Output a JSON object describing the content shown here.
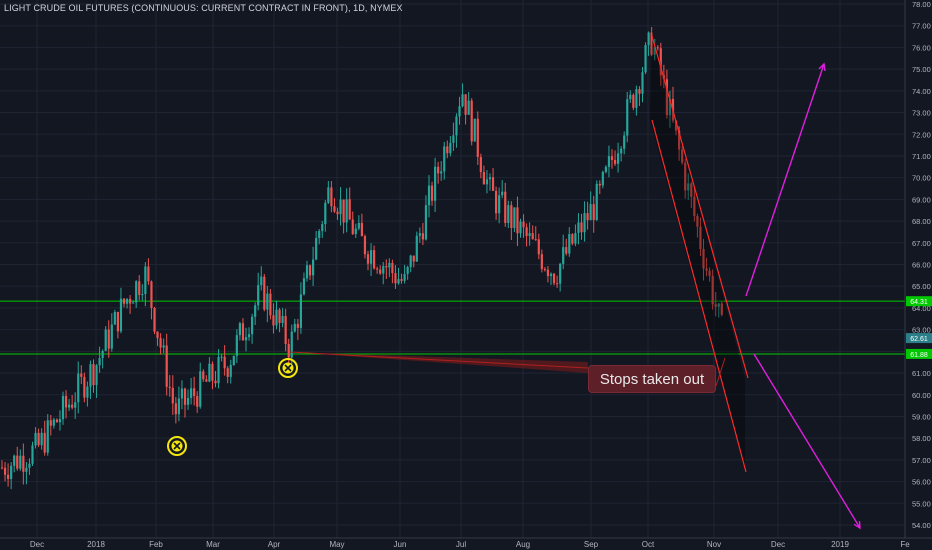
{
  "header": {
    "title": "LIGHT CRUDE OIL FUTURES (CONTINUOUS: CURRENT CONTRACT IN FRONT), 1D, NYMEX"
  },
  "annotation": {
    "text": "Stops taken out"
  },
  "colors": {
    "background": "#131722",
    "grid": "#1f2433",
    "up": "#26a69a",
    "down": "#ef5350",
    "level": "#00c800",
    "trend": "#ff2a2a",
    "arrow": "#e01ee0",
    "marker": "#f5e60a"
  },
  "chart_data": {
    "type": "candlestick",
    "title": "LIGHT CRUDE OIL FUTURES (CONTINUOUS: CURRENT CONTRACT IN FRONT), 1D, NYMEX",
    "ylim": [
      53.6,
      78.2
    ],
    "y_ticks": [
      54,
      55,
      56,
      57,
      58,
      59,
      60,
      61,
      62,
      63,
      64,
      65,
      66,
      67,
      68,
      69,
      70,
      71,
      72,
      73,
      74,
      75,
      76,
      77,
      78
    ],
    "x_ticks": [
      "Dec",
      "2018",
      "Feb",
      "Mar",
      "Apr",
      "May",
      "Jun",
      "Jul",
      "Aug",
      "Sep",
      "Oct",
      "Nov",
      "Dec",
      "2019",
      "Fe"
    ],
    "grid": true,
    "price_labels": [
      "64.31",
      "62.61",
      "61.88"
    ],
    "series_close": [
      {
        "x": "Nov-2017",
        "y": 56.6
      },
      {
        "x": "Dec",
        "y": 57.5
      },
      {
        "x": "2018",
        "y": 61.4
      },
      {
        "x": "Jan-mid",
        "y": 64.3
      },
      {
        "x": "Jan-end",
        "y": 65.6
      },
      {
        "x": "Feb-mid",
        "y": 59.2
      },
      {
        "x": "Mar",
        "y": 61.5
      },
      {
        "x": "Mar-end",
        "y": 64.8
      },
      {
        "x": "Apr-early",
        "y": 62.2
      },
      {
        "x": "May",
        "y": 69.6
      },
      {
        "x": "May-end",
        "y": 67.1
      },
      {
        "x": "Jun-mid",
        "y": 65.1
      },
      {
        "x": "Jul",
        "y": 74.1
      },
      {
        "x": "Jul-end",
        "y": 69.3
      },
      {
        "x": "Aug-mid",
        "y": 65.6
      },
      {
        "x": "Sep",
        "y": 69.2
      },
      {
        "x": "Oct",
        "y": 76.4
      },
      {
        "x": "Nov",
        "y": 62.5
      }
    ],
    "horizontal_levels": [
      64.31,
      61.88
    ],
    "annotations": [
      "Stops taken out"
    ]
  }
}
